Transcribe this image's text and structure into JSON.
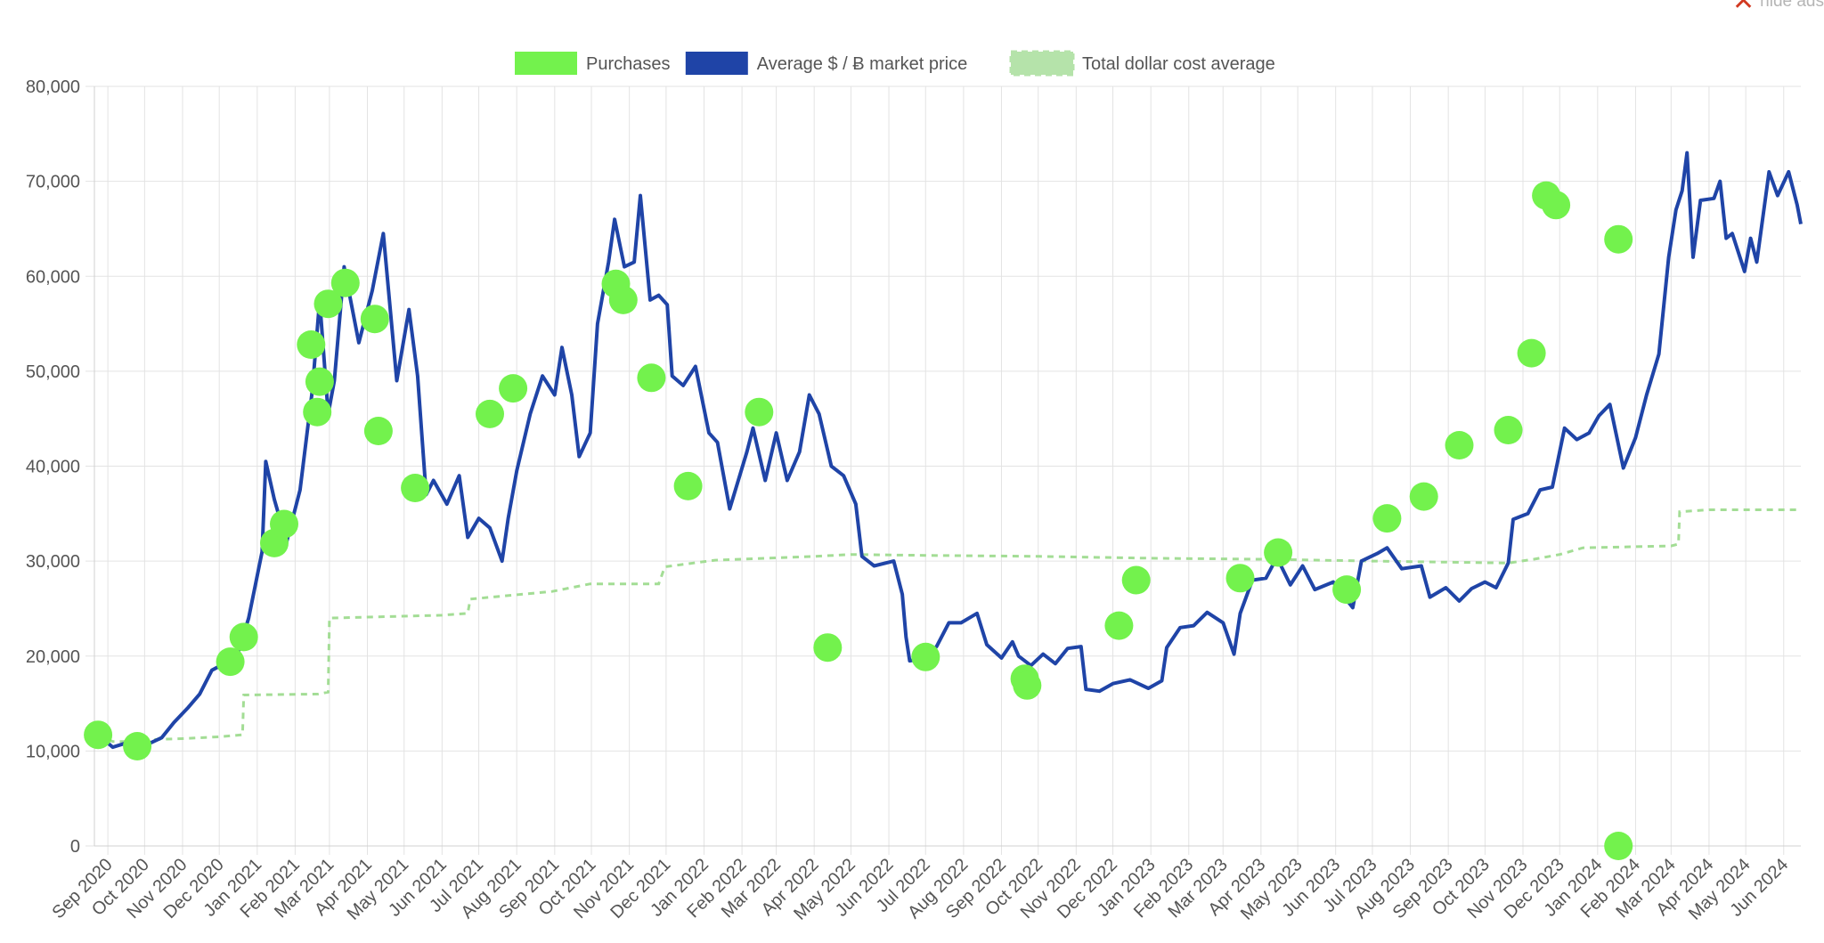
{
  "hide_ads": {
    "label": "hide ads"
  },
  "colors": {
    "price": "#1f44a7",
    "purchases": "#73f24d",
    "dca": "#a3dd95",
    "grid": "#e3e3e3",
    "tick": "#555555"
  },
  "chart_data": {
    "type": "line",
    "title": "",
    "xlabel": "",
    "ylabel": "",
    "ylim": [
      0,
      80000
    ],
    "yticks": [
      0,
      10000,
      20000,
      30000,
      40000,
      50000,
      60000,
      70000,
      80000
    ],
    "ytick_labels": [
      "0",
      "10,000",
      "20,000",
      "30,000",
      "40,000",
      "50,000",
      "60,000",
      "70,000",
      "80,000"
    ],
    "xlim": [
      "2020-08-21",
      "2024-06-15"
    ],
    "xtick_labels": [
      "Sep 2020",
      "Oct 2020",
      "Nov 2020",
      "Dec 2020",
      "Jan 2021",
      "Feb 2021",
      "Mar 2021",
      "Apr 2021",
      "May 2021",
      "Jun 2021",
      "Jul 2021",
      "Aug 2021",
      "Sep 2021",
      "Oct 2021",
      "Nov 2021",
      "Dec 2021",
      "Jan 2022",
      "Feb 2022",
      "Mar 2022",
      "Apr 2022",
      "May 2022",
      "Jun 2022",
      "Jul 2022",
      "Aug 2022",
      "Sep 2022",
      "Oct 2022",
      "Nov 2022",
      "Dec 2022",
      "Jan 2023",
      "Feb 2023",
      "Mar 2023",
      "Apr 2023",
      "May 2023",
      "Jun 2023",
      "Jul 2023",
      "Aug 2023",
      "Sep 2023",
      "Oct 2023",
      "Nov 2023",
      "Dec 2023",
      "Jan 2024",
      "Feb 2024",
      "Mar 2024",
      "Apr 2024",
      "May 2024",
      "Jun 2024"
    ],
    "grid": true,
    "legend_placement": "top-center",
    "legend": [
      {
        "name": "Purchases",
        "kind": "box"
      },
      {
        "name": "Average $ / Ƀ market price",
        "kind": "box"
      },
      {
        "name": "Total dollar cost average",
        "kind": "dashed"
      }
    ],
    "series": [
      {
        "name": "Average $ / Ƀ market price",
        "type": "line",
        "points": [
          [
            "2020-08-24",
            11700
          ],
          [
            "2020-09-05",
            10400
          ],
          [
            "2020-09-15",
            10800
          ],
          [
            "2020-09-25",
            10700
          ],
          [
            "2020-10-05",
            10800
          ],
          [
            "2020-10-15",
            11400
          ],
          [
            "2020-10-25",
            13000
          ],
          [
            "2020-11-05",
            14500
          ],
          [
            "2020-11-15",
            16000
          ],
          [
            "2020-11-25",
            18500
          ],
          [
            "2020-12-05",
            19200
          ],
          [
            "2020-12-15",
            19800
          ],
          [
            "2020-12-25",
            24000
          ],
          [
            "2021-01-05",
            31000
          ],
          [
            "2021-01-08",
            40500
          ],
          [
            "2021-01-15",
            36500
          ],
          [
            "2021-01-25",
            32000
          ],
          [
            "2021-02-05",
            37500
          ],
          [
            "2021-02-15",
            48000
          ],
          [
            "2021-02-21",
            57500
          ],
          [
            "2021-02-28",
            45500
          ],
          [
            "2021-03-05",
            49000
          ],
          [
            "2021-03-13",
            61000
          ],
          [
            "2021-03-25",
            53000
          ],
          [
            "2021-04-05",
            58500
          ],
          [
            "2021-04-14",
            64500
          ],
          [
            "2021-04-25",
            49000
          ],
          [
            "2021-05-05",
            56500
          ],
          [
            "2021-05-12",
            49500
          ],
          [
            "2021-05-19",
            37000
          ],
          [
            "2021-05-25",
            38500
          ],
          [
            "2021-06-05",
            36000
          ],
          [
            "2021-06-15",
            39000
          ],
          [
            "2021-06-22",
            32500
          ],
          [
            "2021-07-01",
            34500
          ],
          [
            "2021-07-10",
            33500
          ],
          [
            "2021-07-20",
            30000
          ],
          [
            "2021-07-25",
            34500
          ],
          [
            "2021-08-01",
            39500
          ],
          [
            "2021-08-12",
            45500
          ],
          [
            "2021-08-22",
            49500
          ],
          [
            "2021-09-01",
            47500
          ],
          [
            "2021-09-07",
            52500
          ],
          [
            "2021-09-15",
            47500
          ],
          [
            "2021-09-21",
            41000
          ],
          [
            "2021-09-30",
            43500
          ],
          [
            "2021-10-06",
            55000
          ],
          [
            "2021-10-15",
            61500
          ],
          [
            "2021-10-20",
            66000
          ],
          [
            "2021-10-28",
            61000
          ],
          [
            "2021-11-05",
            61500
          ],
          [
            "2021-11-10",
            68500
          ],
          [
            "2021-11-18",
            57500
          ],
          [
            "2021-11-25",
            58000
          ],
          [
            "2021-12-02",
            57000
          ],
          [
            "2021-12-06",
            49500
          ],
          [
            "2021-12-15",
            48500
          ],
          [
            "2021-12-25",
            50500
          ],
          [
            "2022-01-05",
            43500
          ],
          [
            "2022-01-12",
            42500
          ],
          [
            "2022-01-22",
            35500
          ],
          [
            "2022-02-05",
            41500
          ],
          [
            "2022-02-10",
            44000
          ],
          [
            "2022-02-20",
            38500
          ],
          [
            "2022-03-01",
            43500
          ],
          [
            "2022-03-10",
            38500
          ],
          [
            "2022-03-20",
            41500
          ],
          [
            "2022-03-28",
            47500
          ],
          [
            "2022-04-05",
            45500
          ],
          [
            "2022-04-15",
            40000
          ],
          [
            "2022-04-25",
            39000
          ],
          [
            "2022-05-05",
            36000
          ],
          [
            "2022-05-10",
            30500
          ],
          [
            "2022-05-20",
            29500
          ],
          [
            "2022-06-05",
            30000
          ],
          [
            "2022-06-12",
            26500
          ],
          [
            "2022-06-15",
            22000
          ],
          [
            "2022-06-18",
            19500
          ],
          [
            "2022-06-30",
            19800
          ],
          [
            "2022-07-10",
            21000
          ],
          [
            "2022-07-20",
            23500
          ],
          [
            "2022-07-30",
            23500
          ],
          [
            "2022-08-12",
            24500
          ],
          [
            "2022-08-20",
            21200
          ],
          [
            "2022-09-01",
            19800
          ],
          [
            "2022-09-10",
            21500
          ],
          [
            "2022-09-15",
            20000
          ],
          [
            "2022-09-25",
            19000
          ],
          [
            "2022-10-05",
            20200
          ],
          [
            "2022-10-15",
            19200
          ],
          [
            "2022-10-25",
            20800
          ],
          [
            "2022-11-05",
            21000
          ],
          [
            "2022-11-09",
            16500
          ],
          [
            "2022-11-20",
            16300
          ],
          [
            "2022-12-01",
            17100
          ],
          [
            "2022-12-15",
            17500
          ],
          [
            "2022-12-30",
            16600
          ],
          [
            "2023-01-10",
            17400
          ],
          [
            "2023-01-14",
            20900
          ],
          [
            "2023-01-25",
            23000
          ],
          [
            "2023-02-05",
            23200
          ],
          [
            "2023-02-16",
            24600
          ],
          [
            "2023-03-01",
            23500
          ],
          [
            "2023-03-10",
            20200
          ],
          [
            "2023-03-15",
            24500
          ],
          [
            "2023-03-25",
            28000
          ],
          [
            "2023-04-05",
            28200
          ],
          [
            "2023-04-14",
            30400
          ],
          [
            "2023-04-25",
            27500
          ],
          [
            "2023-05-05",
            29500
          ],
          [
            "2023-05-15",
            27000
          ],
          [
            "2023-05-30",
            27800
          ],
          [
            "2023-06-10",
            25900
          ],
          [
            "2023-06-15",
            25100
          ],
          [
            "2023-06-22",
            30000
          ],
          [
            "2023-07-05",
            30800
          ],
          [
            "2023-07-13",
            31400
          ],
          [
            "2023-07-25",
            29200
          ],
          [
            "2023-08-10",
            29500
          ],
          [
            "2023-08-17",
            26200
          ],
          [
            "2023-08-30",
            27200
          ],
          [
            "2023-09-10",
            25800
          ],
          [
            "2023-09-20",
            27100
          ],
          [
            "2023-10-01",
            27800
          ],
          [
            "2023-10-10",
            27200
          ],
          [
            "2023-10-20",
            29800
          ],
          [
            "2023-10-24",
            34400
          ],
          [
            "2023-11-05",
            35000
          ],
          [
            "2023-11-15",
            37500
          ],
          [
            "2023-11-25",
            37800
          ],
          [
            "2023-12-05",
            44000
          ],
          [
            "2023-12-15",
            42800
          ],
          [
            "2023-12-25",
            43500
          ],
          [
            "2024-01-02",
            45300
          ],
          [
            "2024-01-11",
            46500
          ],
          [
            "2024-01-22",
            39800
          ],
          [
            "2024-02-01",
            43000
          ],
          [
            "2024-02-10",
            47500
          ],
          [
            "2024-02-20",
            51800
          ],
          [
            "2024-02-28",
            62000
          ],
          [
            "2024-03-05",
            67000
          ],
          [
            "2024-03-10",
            69000
          ],
          [
            "2024-03-14",
            73000
          ],
          [
            "2024-03-19",
            62000
          ],
          [
            "2024-03-25",
            68000
          ],
          [
            "2024-04-05",
            68200
          ],
          [
            "2024-04-10",
            70000
          ],
          [
            "2024-04-15",
            64000
          ],
          [
            "2024-04-20",
            64500
          ],
          [
            "2024-04-30",
            60500
          ],
          [
            "2024-05-05",
            64000
          ],
          [
            "2024-05-10",
            61500
          ],
          [
            "2024-05-20",
            71000
          ],
          [
            "2024-05-27",
            68500
          ],
          [
            "2024-06-05",
            71000
          ],
          [
            "2024-06-12",
            67500
          ],
          [
            "2024-06-15",
            65500
          ]
        ]
      },
      {
        "name": "Total dollar cost average",
        "type": "step",
        "points": [
          [
            "2020-08-24",
            11700
          ],
          [
            "2020-09-05",
            11000
          ],
          [
            "2020-09-25",
            11000
          ],
          [
            "2020-10-05",
            11200
          ],
          [
            "2020-11-01",
            11300
          ],
          [
            "2020-12-01",
            11500
          ],
          [
            "2020-12-20",
            11700
          ],
          [
            "2020-12-21",
            15900
          ],
          [
            "2021-02-20",
            16000
          ],
          [
            "2021-02-28",
            16200
          ],
          [
            "2021-03-01",
            24000
          ],
          [
            "2021-06-01",
            24300
          ],
          [
            "2021-06-22",
            24500
          ],
          [
            "2021-06-24",
            26000
          ],
          [
            "2021-08-30",
            26800
          ],
          [
            "2021-09-30",
            27600
          ],
          [
            "2021-11-25",
            27600
          ],
          [
            "2021-11-30",
            29400
          ],
          [
            "2022-01-10",
            30100
          ],
          [
            "2022-04-01",
            30500
          ],
          [
            "2022-05-01",
            30700
          ],
          [
            "2022-07-01",
            30600
          ],
          [
            "2022-10-01",
            30500
          ],
          [
            "2023-01-01",
            30300
          ],
          [
            "2023-04-01",
            30200
          ],
          [
            "2023-07-01",
            30000
          ],
          [
            "2023-10-20",
            29800
          ],
          [
            "2023-11-10",
            30200
          ],
          [
            "2023-12-01",
            30700
          ],
          [
            "2023-12-20",
            31400
          ],
          [
            "2024-03-01",
            31600
          ],
          [
            "2024-03-07",
            31800
          ],
          [
            "2024-03-08",
            35200
          ],
          [
            "2024-04-01",
            35400
          ],
          [
            "2024-06-15",
            35400
          ]
        ]
      },
      {
        "name": "Purchases",
        "type": "scatter",
        "points": [
          [
            "2020-08-24",
            11700
          ],
          [
            "2020-09-25",
            10500
          ],
          [
            "2020-12-10",
            19400
          ],
          [
            "2020-12-21",
            22000
          ],
          [
            "2021-01-15",
            31900
          ],
          [
            "2021-01-23",
            33900
          ],
          [
            "2021-02-14",
            52800
          ],
          [
            "2021-02-19",
            45700
          ],
          [
            "2021-02-21",
            48900
          ],
          [
            "2021-02-28",
            57100
          ],
          [
            "2021-03-14",
            59300
          ],
          [
            "2021-04-07",
            55500
          ],
          [
            "2021-04-10",
            43700
          ],
          [
            "2021-05-10",
            37700
          ],
          [
            "2021-07-10",
            45500
          ],
          [
            "2021-07-29",
            48200
          ],
          [
            "2021-10-21",
            59200
          ],
          [
            "2021-10-27",
            57500
          ],
          [
            "2021-11-19",
            49300
          ],
          [
            "2021-12-19",
            37900
          ],
          [
            "2022-02-15",
            45700
          ],
          [
            "2022-04-12",
            20900
          ],
          [
            "2022-07-01",
            19900
          ],
          [
            "2022-09-20",
            17600
          ],
          [
            "2022-09-22",
            16900
          ],
          [
            "2022-12-06",
            23200
          ],
          [
            "2022-12-20",
            28000
          ],
          [
            "2023-03-15",
            28200
          ],
          [
            "2023-04-15",
            30900
          ],
          [
            "2023-06-10",
            27000
          ],
          [
            "2023-07-13",
            34500
          ],
          [
            "2023-08-12",
            36800
          ],
          [
            "2023-09-10",
            42200
          ],
          [
            "2023-10-20",
            43800
          ],
          [
            "2023-11-08",
            51900
          ],
          [
            "2023-11-20",
            68500
          ],
          [
            "2023-11-28",
            67500
          ],
          [
            "2024-01-18",
            63900
          ],
          [
            "2024-01-18",
            0
          ]
        ]
      }
    ]
  }
}
